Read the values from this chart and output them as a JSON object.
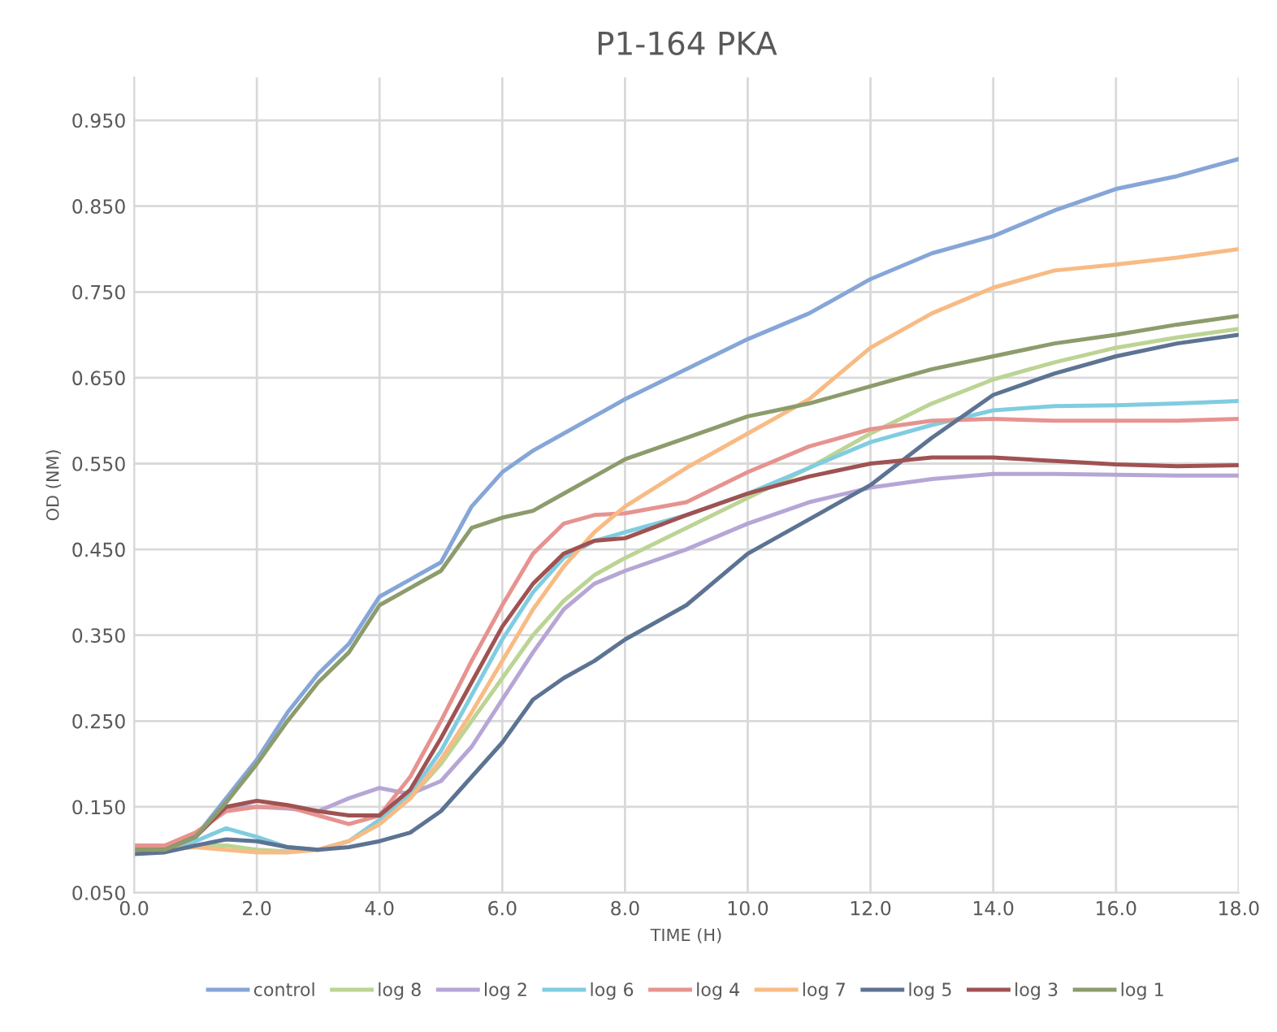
{
  "chart_data": {
    "type": "line",
    "title": "P1-164 PKA",
    "xlabel": "TIME (H)",
    "ylabel": "OD (NM)",
    "x": [
      0,
      0.5,
      1,
      1.5,
      2,
      2.5,
      3,
      3.5,
      4,
      4.5,
      5,
      5.5,
      6,
      6.5,
      7,
      7.5,
      8,
      9,
      10,
      11,
      12,
      13,
      14,
      15,
      16,
      17,
      18
    ],
    "series": [
      {
        "name": "control",
        "color": "#86a6d8",
        "values": [
          0.1,
          0.1,
          0.115,
          0.16,
          0.205,
          0.26,
          0.305,
          0.34,
          0.395,
          0.415,
          0.435,
          0.5,
          0.54,
          0.565,
          0.585,
          0.605,
          0.625,
          0.66,
          0.695,
          0.725,
          0.765,
          0.795,
          0.815,
          0.845,
          0.87,
          0.885,
          0.905
        ]
      },
      {
        "name": "log 8",
        "color": "#bcd494",
        "values": [
          0.1,
          0.1,
          0.105,
          0.105,
          0.1,
          0.098,
          0.1,
          0.11,
          0.13,
          0.16,
          0.2,
          0.25,
          0.3,
          0.35,
          0.39,
          0.42,
          0.44,
          0.475,
          0.51,
          0.545,
          0.585,
          0.62,
          0.648,
          0.668,
          0.685,
          0.697,
          0.707
        ]
      },
      {
        "name": "log 2",
        "color": "#b6a6d6",
        "values": [
          0.1,
          0.1,
          0.115,
          0.15,
          0.15,
          0.148,
          0.145,
          0.16,
          0.172,
          0.165,
          0.18,
          0.22,
          0.275,
          0.33,
          0.38,
          0.41,
          0.425,
          0.45,
          0.48,
          0.505,
          0.522,
          0.532,
          0.538,
          0.538,
          0.537,
          0.536,
          0.536
        ]
      },
      {
        "name": "log 6",
        "color": "#80cce0",
        "values": [
          0.1,
          0.1,
          0.11,
          0.125,
          0.115,
          0.103,
          0.1,
          0.11,
          0.135,
          0.165,
          0.215,
          0.28,
          0.345,
          0.4,
          0.44,
          0.46,
          0.47,
          0.49,
          0.515,
          0.545,
          0.575,
          0.595,
          0.612,
          0.617,
          0.618,
          0.62,
          0.623
        ]
      },
      {
        "name": "log 4",
        "color": "#e69390",
        "values": [
          0.105,
          0.105,
          0.12,
          0.145,
          0.15,
          0.15,
          0.14,
          0.13,
          0.14,
          0.185,
          0.25,
          0.32,
          0.385,
          0.445,
          0.48,
          0.49,
          0.492,
          0.505,
          0.54,
          0.57,
          0.59,
          0.6,
          0.602,
          0.6,
          0.6,
          0.6,
          0.602
        ]
      },
      {
        "name": "log 7",
        "color": "#f8bb84",
        "values": [
          0.1,
          0.1,
          0.103,
          0.1,
          0.097,
          0.097,
          0.1,
          0.11,
          0.13,
          0.16,
          0.205,
          0.26,
          0.32,
          0.38,
          0.43,
          0.47,
          0.5,
          0.545,
          0.585,
          0.625,
          0.685,
          0.725,
          0.755,
          0.775,
          0.782,
          0.79,
          0.8
        ]
      },
      {
        "name": "log 5",
        "color": "#5d7393",
        "values": [
          0.095,
          0.097,
          0.105,
          0.112,
          0.11,
          0.103,
          0.1,
          0.103,
          0.11,
          0.12,
          0.145,
          0.185,
          0.225,
          0.275,
          0.3,
          0.32,
          0.345,
          0.385,
          0.445,
          0.485,
          0.525,
          0.58,
          0.63,
          0.655,
          0.675,
          0.69,
          0.7
        ]
      },
      {
        "name": "log 3",
        "color": "#a05252",
        "values": [
          0.1,
          0.1,
          0.115,
          0.15,
          0.157,
          0.152,
          0.145,
          0.14,
          0.14,
          0.17,
          0.23,
          0.295,
          0.36,
          0.41,
          0.445,
          0.46,
          0.463,
          0.49,
          0.515,
          0.535,
          0.55,
          0.557,
          0.557,
          0.553,
          0.549,
          0.547,
          0.548
        ]
      },
      {
        "name": "log 1",
        "color": "#8c9c6c",
        "values": [
          0.1,
          0.1,
          0.115,
          0.155,
          0.2,
          0.25,
          0.295,
          0.33,
          0.385,
          0.405,
          0.425,
          0.475,
          0.487,
          0.495,
          0.515,
          0.535,
          0.555,
          0.58,
          0.605,
          0.62,
          0.64,
          0.66,
          0.675,
          0.69,
          0.7,
          0.712,
          0.722
        ]
      }
    ],
    "xlim": [
      0,
      18
    ],
    "xticks": [
      {
        "value": 0,
        "label": "0.0"
      },
      {
        "value": 2,
        "label": "2.0"
      },
      {
        "value": 4,
        "label": "4.0"
      },
      {
        "value": 6,
        "label": "6.0"
      },
      {
        "value": 8,
        "label": "8.0"
      },
      {
        "value": 10,
        "label": "10.0"
      },
      {
        "value": 12,
        "label": "12.0"
      },
      {
        "value": 14,
        "label": "14.0"
      },
      {
        "value": 16,
        "label": "16.0"
      },
      {
        "value": 18,
        "label": "18.0"
      }
    ],
    "ylim": [
      0.05,
      1.0
    ],
    "yticks": [
      {
        "value": 0.05,
        "label": "0.050"
      },
      {
        "value": 0.15,
        "label": "0.150"
      },
      {
        "value": 0.25,
        "label": "0.250"
      },
      {
        "value": 0.35,
        "label": "0.350"
      },
      {
        "value": 0.45,
        "label": "0.450"
      },
      {
        "value": 0.55,
        "label": "0.550"
      },
      {
        "value": 0.65,
        "label": "0.650"
      },
      {
        "value": 0.75,
        "label": "0.750"
      },
      {
        "value": 0.85,
        "label": "0.850"
      },
      {
        "value": 0.95,
        "label": "0.950"
      }
    ],
    "grid": true,
    "legend": "bottom",
    "marker": "none",
    "line_style": "solid"
  }
}
